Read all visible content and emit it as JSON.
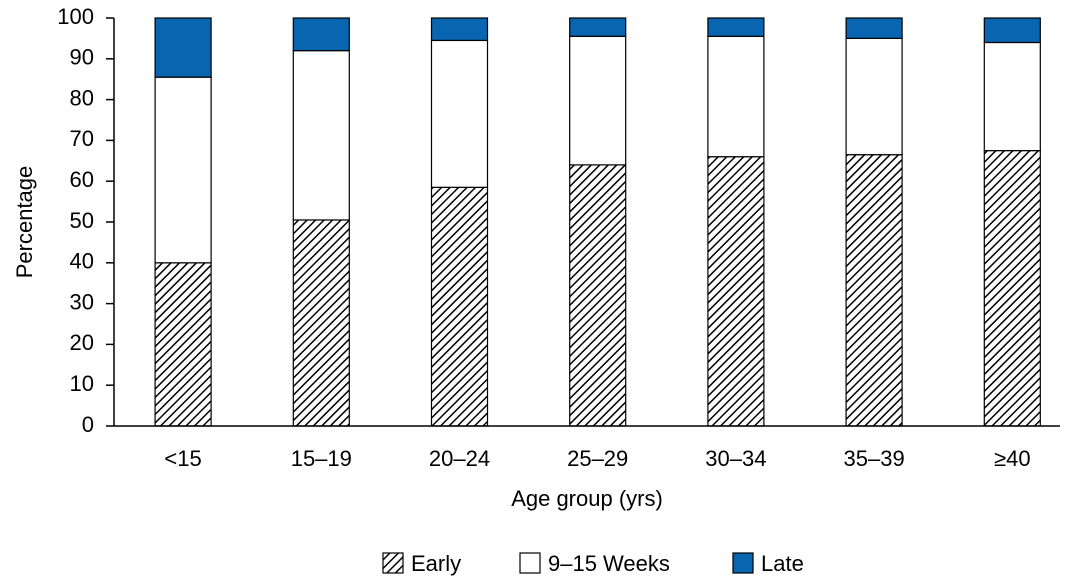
{
  "chart_data": {
    "type": "stacked-bar",
    "categories": [
      "<15",
      "15–19",
      "20–24",
      "25–29",
      "30–34",
      "35–39",
      "≥40"
    ],
    "series": [
      {
        "name": "Early",
        "color": "#000000",
        "pattern": "diagonal-hatch",
        "values": [
          40,
          50.5,
          58.5,
          64,
          66,
          66.5,
          67.5
        ]
      },
      {
        "name": "9–15 Weeks",
        "color": "#ffffff",
        "values": [
          45.5,
          41.5,
          36,
          31.5,
          29.5,
          28.5,
          26.5
        ]
      },
      {
        "name": "Late",
        "color": "#0a65b0",
        "values": [
          14.5,
          8,
          5.5,
          4.5,
          4.5,
          5,
          6
        ]
      }
    ],
    "ylim": [
      0,
      100
    ],
    "yticks": [
      0,
      10,
      20,
      30,
      40,
      50,
      60,
      70,
      80,
      90,
      100
    ],
    "xlabel": "Age group (yrs)",
    "ylabel": "Percentage",
    "legend": "bottom"
  }
}
